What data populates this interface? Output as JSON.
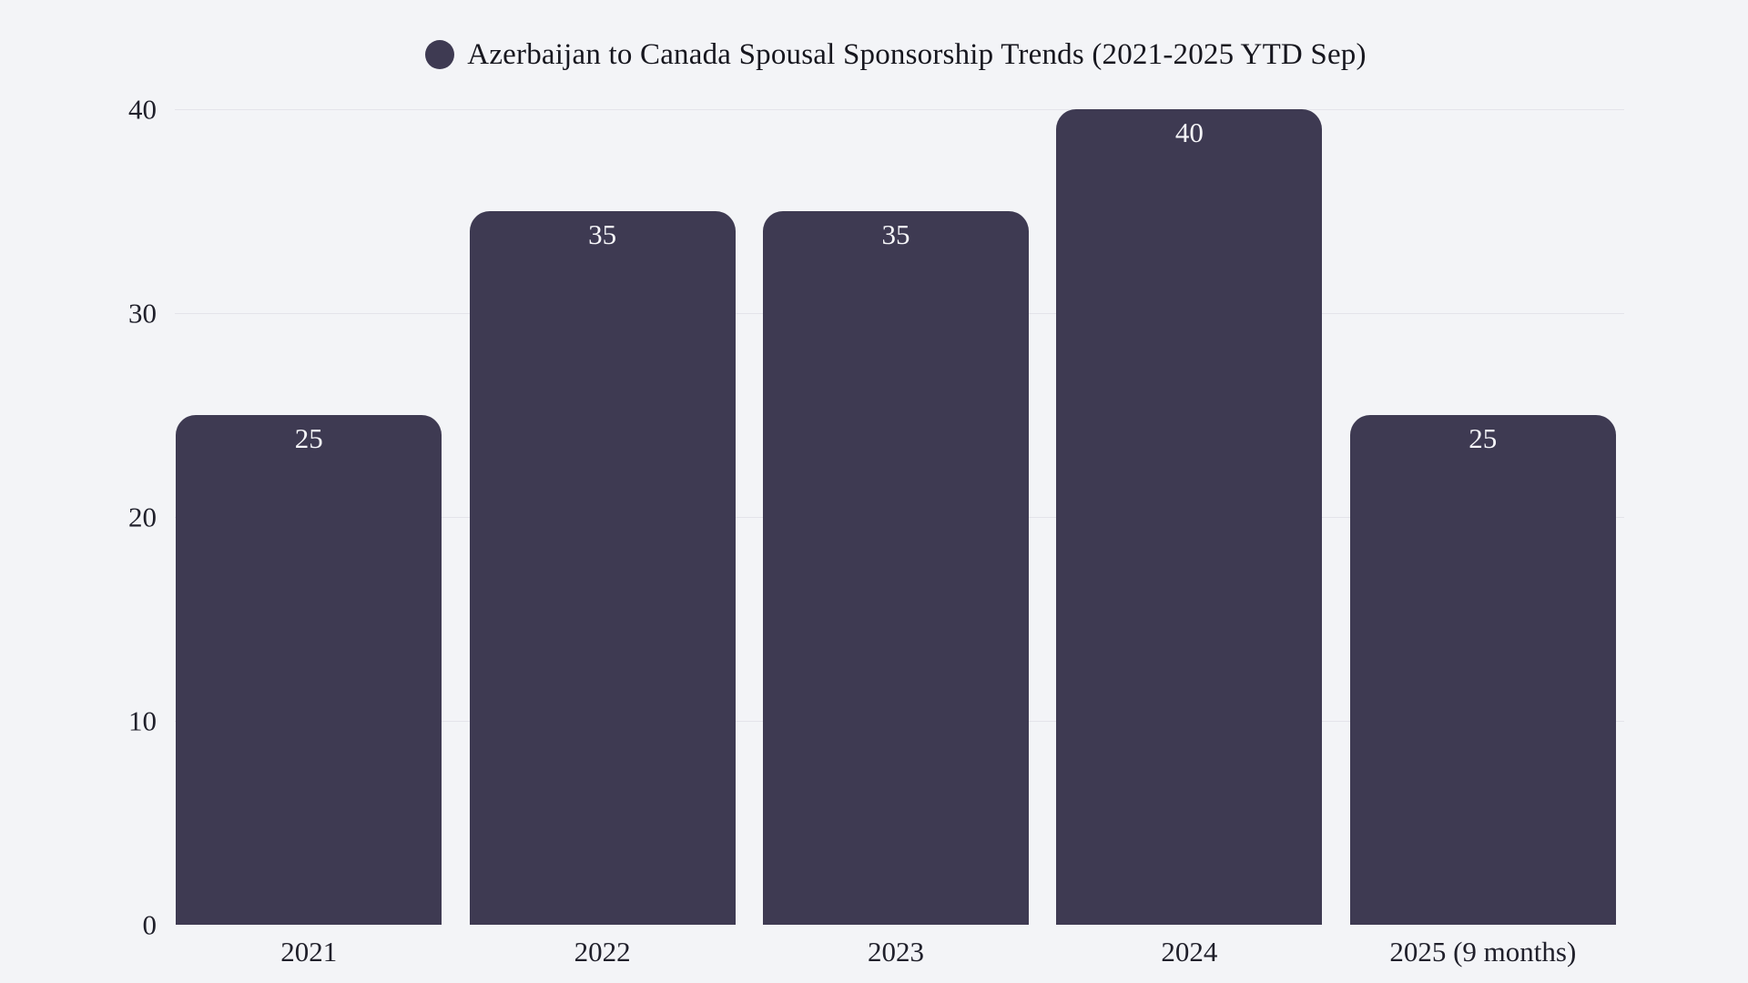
{
  "page": {
    "background_color": "#f3f4f7"
  },
  "chart_data": {
    "type": "bar",
    "title": "Azerbaijan to Canada Spousal Sponsorship Trends (2021-2025 YTD Sep)",
    "legend": {
      "position": "top-center",
      "entries": [
        {
          "label": "Azerbaijan to Canada Spousal Sponsorship Trends (2021-2025 YTD Sep)",
          "marker": "circle",
          "color": "#3e3a52"
        }
      ]
    },
    "categories": [
      "2021",
      "2022",
      "2023",
      "2024",
      "2025 (9 months)"
    ],
    "values": [
      25,
      35,
      35,
      40,
      25
    ],
    "value_labels_shown": true,
    "xlabel": "",
    "ylabel": "",
    "ylim": [
      0,
      40
    ],
    "yticks": [
      0,
      10,
      20,
      30,
      40
    ],
    "grid": "horizontal",
    "colors": {
      "bar": "#3e3a52",
      "background": "#f3f4f7",
      "gridline": "#e4e4ea",
      "axis_text": "#20202b",
      "title_text": "#17171f",
      "value_label_text": "#f6f6f9"
    }
  }
}
